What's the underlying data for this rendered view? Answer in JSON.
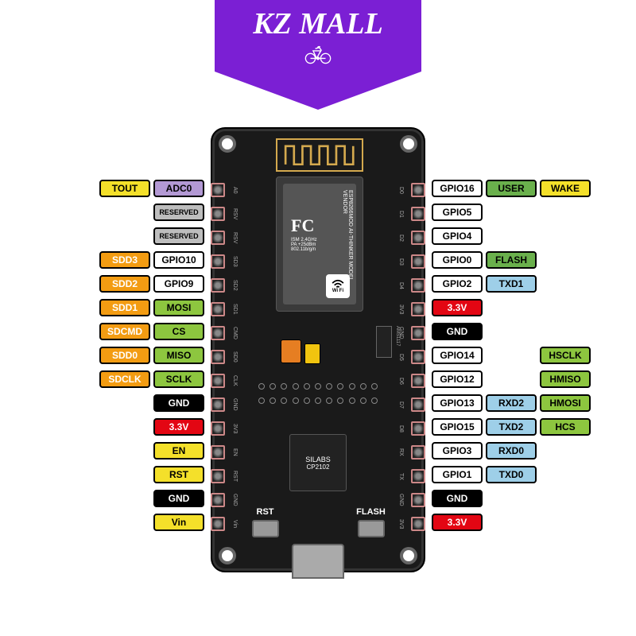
{
  "banner": {
    "title": "KZ MALL",
    "bg": "#7b1fd4"
  },
  "board": {
    "esp_model": "ESP8266MOD",
    "esp_vendor": "AI-THINKER",
    "wifi_text": "Wi Fi",
    "fcc": "FC",
    "fcc_sub": "ISM 2.4GHz\nPA +25dBm\n802.11b/g/n",
    "usb_chip": "SILABS",
    "usb_chip_sub": "CP2102",
    "regulator": "AMS1117",
    "btn_rst": "RST",
    "btn_flash": "FLASH"
  },
  "silk_left": [
    "A0",
    "RSV",
    "RSV",
    "SD3",
    "SD2",
    "SD1",
    "CMD",
    "SD0",
    "CLK",
    "GND",
    "3V3",
    "EN",
    "RST",
    "GND",
    "Vin"
  ],
  "silk_right": [
    "D0",
    "D1",
    "D2",
    "D3",
    "D4",
    "3V3",
    "GND",
    "D5",
    "D6",
    "D7",
    "D8",
    "RX",
    "TX",
    "GND",
    "3V3"
  ],
  "colors": {
    "yellow": "#f4e02a",
    "purple": "#b399d4",
    "grey": "#bdbdbd",
    "orange": "#f39c12",
    "white": "#ffffff",
    "green": "#8dc63f",
    "black": "#000000",
    "red": "#e74c3c",
    "red_txt": "#ff0000",
    "blue": "#9ecfe8",
    "green_d": "#6ab04c"
  },
  "left_col1": [
    {
      "t": "ADC0",
      "bg": "purple",
      "fg": "#000"
    },
    {
      "t": "RESERVED",
      "bg": "grey",
      "fg": "#000",
      "fs": 9
    },
    {
      "t": "RESERVED",
      "bg": "grey",
      "fg": "#000",
      "fs": 9
    },
    {
      "t": "GPIO10",
      "bg": "white",
      "fg": "#000"
    },
    {
      "t": "GPIO9",
      "bg": "white",
      "fg": "#000"
    },
    {
      "t": "MOSI",
      "bg": "green",
      "fg": "#000"
    },
    {
      "t": "CS",
      "bg": "green",
      "fg": "#000"
    },
    {
      "t": "MISO",
      "bg": "green",
      "fg": "#000"
    },
    {
      "t": "SCLK",
      "bg": "green",
      "fg": "#000"
    },
    {
      "t": "GND",
      "bg": "black",
      "fg": "#fff"
    },
    {
      "t": "3.3V",
      "bg": "red",
      "fg": "red_txt",
      "fgc": "#fff",
      "bold_red": true
    },
    {
      "t": "EN",
      "bg": "yellow",
      "fg": "#000"
    },
    {
      "t": "RST",
      "bg": "yellow",
      "fg": "#000"
    },
    {
      "t": "GND",
      "bg": "black",
      "fg": "#fff"
    },
    {
      "t": "Vin",
      "bg": "yellow",
      "fg": "#000"
    }
  ],
  "left_col2": [
    {
      "t": "TOUT",
      "bg": "yellow",
      "fg": "#000"
    },
    null,
    null,
    {
      "t": "SDD3",
      "bg": "orange",
      "fg": "#fff"
    },
    {
      "t": "SDD2",
      "bg": "orange",
      "fg": "#fff"
    },
    {
      "t": "SDD1",
      "bg": "orange",
      "fg": "#fff"
    },
    {
      "t": "SDCMD",
      "bg": "orange",
      "fg": "#fff"
    },
    {
      "t": "SDD0",
      "bg": "orange",
      "fg": "#fff"
    },
    {
      "t": "SDCLK",
      "bg": "orange",
      "fg": "#fff"
    },
    null,
    null,
    null,
    null,
    null,
    null
  ],
  "right_col1": [
    {
      "t": "GPIO16",
      "bg": "white",
      "fg": "#000"
    },
    {
      "t": "GPIO5",
      "bg": "white",
      "fg": "#000"
    },
    {
      "t": "GPIO4",
      "bg": "white",
      "fg": "#000"
    },
    {
      "t": "GPIO0",
      "bg": "white",
      "fg": "#000"
    },
    {
      "t": "GPIO2",
      "bg": "white",
      "fg": "#000"
    },
    {
      "t": "3.3V",
      "bg": "red",
      "fg": "#fff",
      "bold_red": true
    },
    {
      "t": "GND",
      "bg": "black",
      "fg": "#fff"
    },
    {
      "t": "GPIO14",
      "bg": "white",
      "fg": "#000"
    },
    {
      "t": "GPIO12",
      "bg": "white",
      "fg": "#000"
    },
    {
      "t": "GPIO13",
      "bg": "white",
      "fg": "#000"
    },
    {
      "t": "GPIO15",
      "bg": "white",
      "fg": "#000"
    },
    {
      "t": "GPIO3",
      "bg": "white",
      "fg": "#000"
    },
    {
      "t": "GPIO1",
      "bg": "white",
      "fg": "#000"
    },
    {
      "t": "GND",
      "bg": "black",
      "fg": "#fff"
    },
    {
      "t": "3.3V",
      "bg": "red",
      "fg": "#fff",
      "bold_red": true
    }
  ],
  "right_col2": [
    {
      "t": "USER",
      "bg": "green_d",
      "fg": "#000"
    },
    null,
    null,
    {
      "t": "FLASH",
      "bg": "green_d",
      "fg": "#000"
    },
    {
      "t": "TXD1",
      "bg": "blue",
      "fg": "#000"
    },
    null,
    null,
    null,
    null,
    {
      "t": "RXD2",
      "bg": "blue",
      "fg": "#000"
    },
    {
      "t": "TXD2",
      "bg": "blue",
      "fg": "#000"
    },
    {
      "t": "RXD0",
      "bg": "blue",
      "fg": "#000"
    },
    {
      "t": "TXD0",
      "bg": "blue",
      "fg": "#000"
    },
    null,
    null
  ],
  "right_col3": [
    {
      "t": "WAKE",
      "bg": "yellow",
      "fg": "#000"
    },
    null,
    null,
    null,
    null,
    null,
    null,
    {
      "t": "HSCLK",
      "bg": "green",
      "fg": "#000"
    },
    {
      "t": "HMISO",
      "bg": "green",
      "fg": "#000"
    },
    {
      "t": "HMOSI",
      "bg": "green",
      "fg": "#000"
    },
    {
      "t": "HCS",
      "bg": "green",
      "fg": "#000"
    },
    null,
    null,
    null,
    null
  ]
}
